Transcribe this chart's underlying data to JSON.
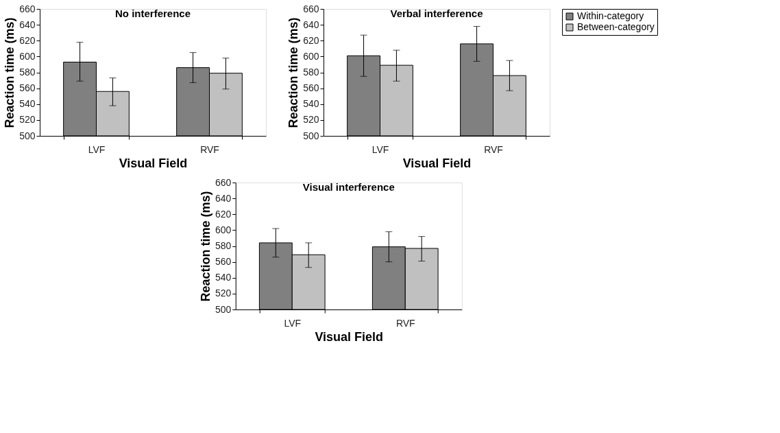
{
  "chart_data": [
    {
      "type": "bar",
      "title": "No interference",
      "xlabel": "Visual Field",
      "ylabel": "Reaction time (ms)",
      "categories": [
        "LVF",
        "RVF"
      ],
      "ylim": [
        500,
        660
      ],
      "yticks": [
        500,
        520,
        540,
        560,
        580,
        600,
        620,
        640,
        660
      ],
      "grid": false,
      "legend": false,
      "series": [
        {
          "color": "#808080",
          "values": [
            593,
            586
          ],
          "errors": [
            [
              569,
              618
            ],
            [
              567,
              605
            ]
          ]
        },
        {
          "color": "#c0c0c0",
          "values": [
            556,
            579
          ],
          "errors": [
            [
              538,
              573
            ],
            [
              559,
              598
            ]
          ]
        }
      ]
    },
    {
      "type": "bar",
      "title": "Verbal  interference",
      "xlabel": "Visual Field",
      "ylabel": "Reaction time (ms)",
      "categories": [
        "LVF",
        "RVF"
      ],
      "ylim": [
        500,
        660
      ],
      "yticks": [
        500,
        520,
        540,
        560,
        580,
        600,
        620,
        640,
        660
      ],
      "grid": false,
      "legend": "right",
      "series": [
        {
          "name": "Within-category",
          "color": "#808080",
          "values": [
            601,
            616
          ],
          "errors": [
            [
              575,
              627
            ],
            [
              594,
              638
            ]
          ]
        },
        {
          "name": "Between-category",
          "color": "#c0c0c0",
          "values": [
            589,
            576
          ],
          "errors": [
            [
              569,
              608
            ],
            [
              557,
              595
            ]
          ]
        }
      ]
    },
    {
      "type": "bar",
      "title": "Visual  interference",
      "xlabel": "Visual Field",
      "ylabel": "Reaction time (ms)",
      "categories": [
        "LVF",
        "RVF"
      ],
      "ylim": [
        500,
        660
      ],
      "yticks": [
        500,
        520,
        540,
        560,
        580,
        600,
        620,
        640,
        660
      ],
      "grid": false,
      "legend": false,
      "series": [
        {
          "color": "#808080",
          "values": [
            584,
            579
          ],
          "errors": [
            [
              566,
              602
            ],
            [
              560,
              598
            ]
          ]
        },
        {
          "color": "#c0c0c0",
          "values": [
            569,
            577
          ],
          "errors": [
            [
              553,
              584
            ],
            [
              561,
              592
            ]
          ]
        }
      ]
    }
  ]
}
